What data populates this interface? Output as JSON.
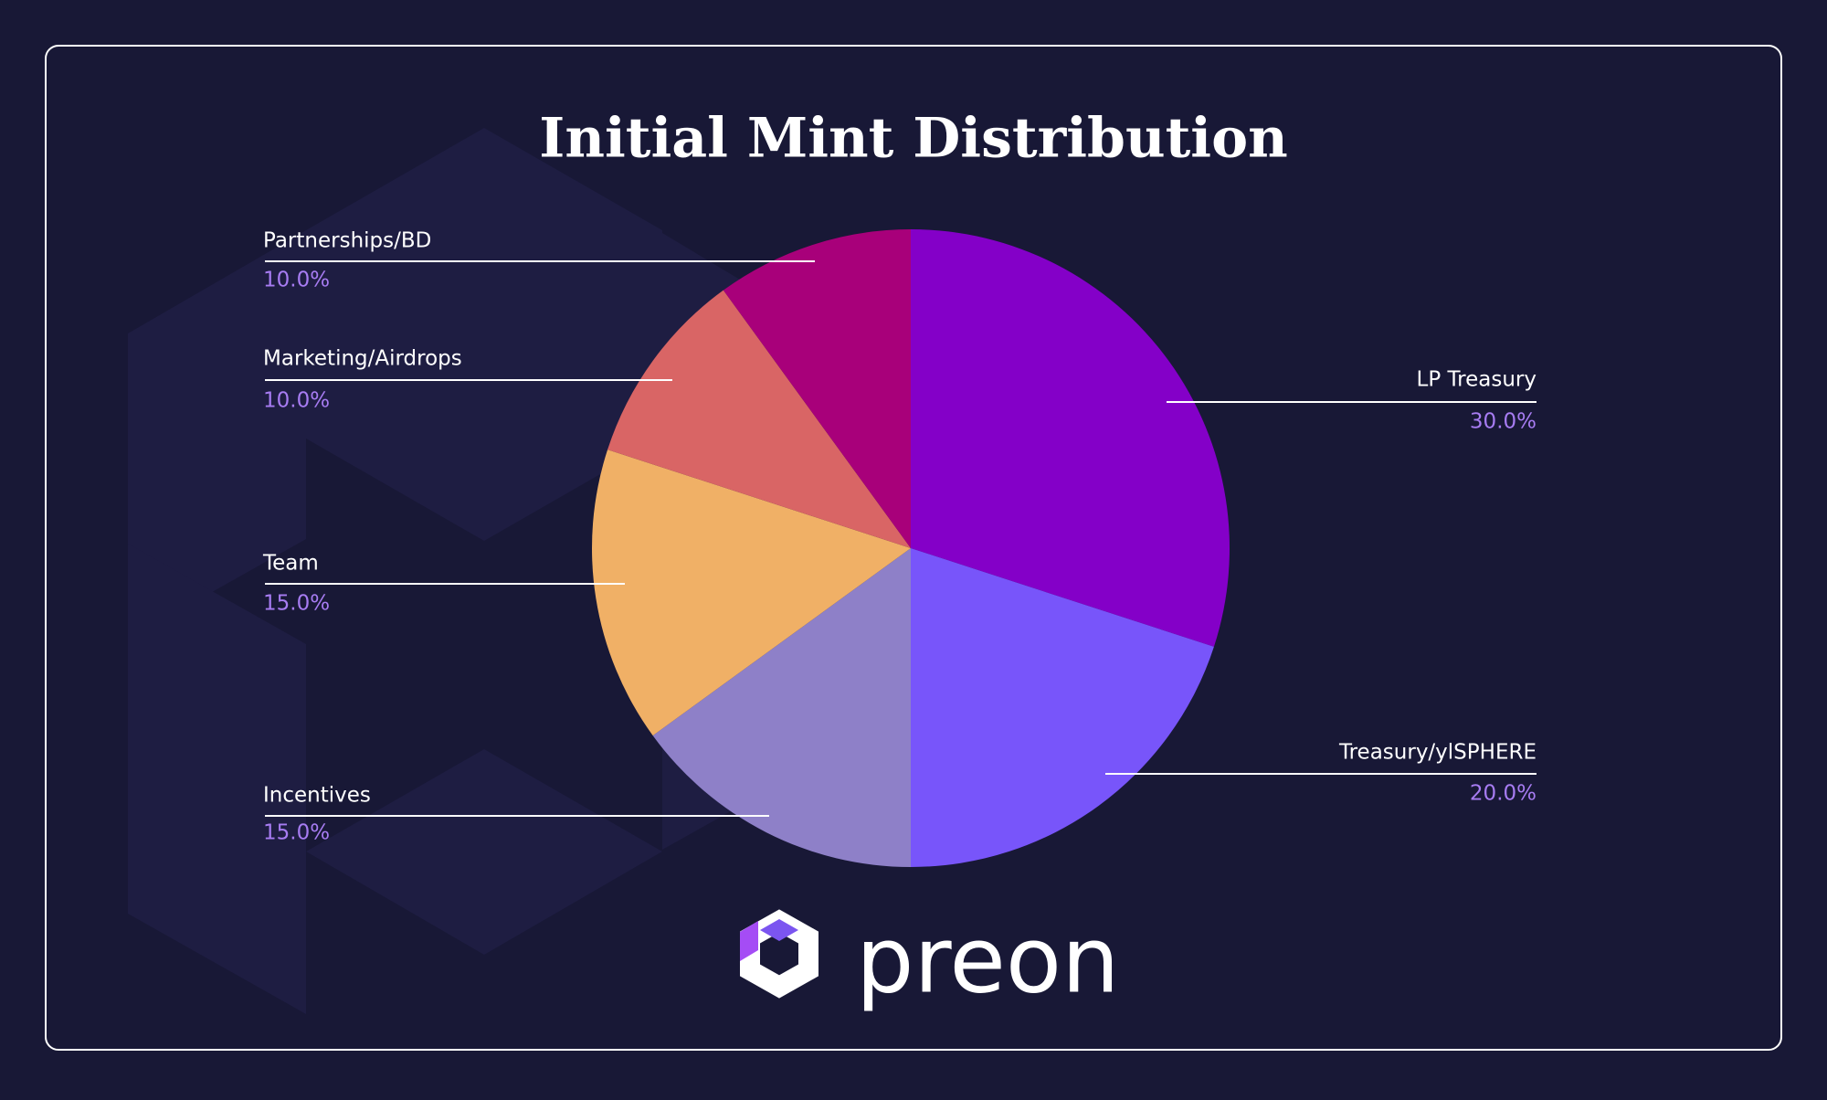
{
  "chart_data": {
    "type": "pie",
    "title": "Initial Mint Distribution",
    "categories": [
      "LP Treasury",
      "Treasury/ylSPHERE",
      "Incentives",
      "Team",
      "Marketing/Airdrops",
      "Partnerships/BD"
    ],
    "values": [
      30,
      20,
      15,
      15,
      10,
      10
    ],
    "value_labels": [
      "30.0%",
      "20.0%",
      "15.0%",
      "15.0%",
      "10.0%",
      "10.0%"
    ],
    "colors": [
      "#8400c8",
      "#7855fa",
      "#8e80c8",
      "#f0b066",
      "#d96565",
      "#a8007a"
    ]
  },
  "logo_text": "preon"
}
